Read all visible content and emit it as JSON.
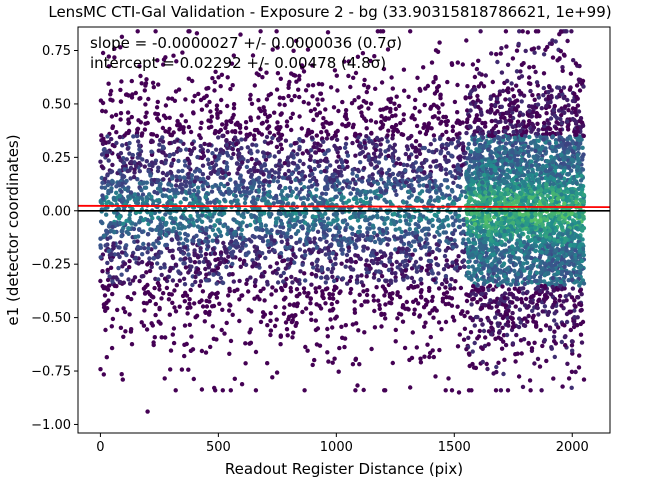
{
  "chart_data": {
    "type": "scatter",
    "title": "LensMC CTI-Gal Validation - Exposure 2 - bg (33.90315818786621, 1e+99)",
    "xlabel": "Readout Register Distance (pix)",
    "ylabel": "e1 (detector coordinates)",
    "xlim": [
      -95,
      2160
    ],
    "ylim": [
      -1.04,
      0.86
    ],
    "x_ticks": [
      0,
      500,
      1000,
      1500,
      2000
    ],
    "y_ticks": [
      -1.0,
      -0.75,
      -0.5,
      -0.25,
      0.0,
      0.25,
      0.5,
      0.75
    ],
    "x_tick_labels": [
      "0",
      "500",
      "1000",
      "1500",
      "2000"
    ],
    "y_tick_labels": [
      "−1.00",
      "−0.75",
      "−0.50",
      "−0.25",
      "0.00",
      "0.25",
      "0.50",
      "0.75"
    ],
    "annotations": [
      "slope = -0.0000027 +/- 0.0000036 (0.7σ)",
      "intercept = 0.02292 +/- 0.00478 (4.8σ)"
    ],
    "fit_line": {
      "slope": -2.7e-06,
      "intercept": 0.02292,
      "color": "#ff0000"
    },
    "reference_line": {
      "y": 0.0,
      "color": "#000000"
    },
    "colormap": "viridis",
    "colormap_stops": [
      "#440154",
      "#3b528b",
      "#21918c",
      "#5ec962",
      "#fde725"
    ],
    "point_color_base": "#46327e",
    "points_summary": {
      "x_range": [
        0,
        2050
      ],
      "y_range": [
        -0.94,
        0.84
      ],
      "approx_count": 9000,
      "dense_region_x": [
        1550,
        2050
      ],
      "outliers": [
        [
          200,
          -0.94
        ],
        [
          1520,
          -0.85
        ],
        [
          2050,
          -0.79
        ],
        [
          95,
          -0.79
        ]
      ]
    },
    "grid": false
  }
}
